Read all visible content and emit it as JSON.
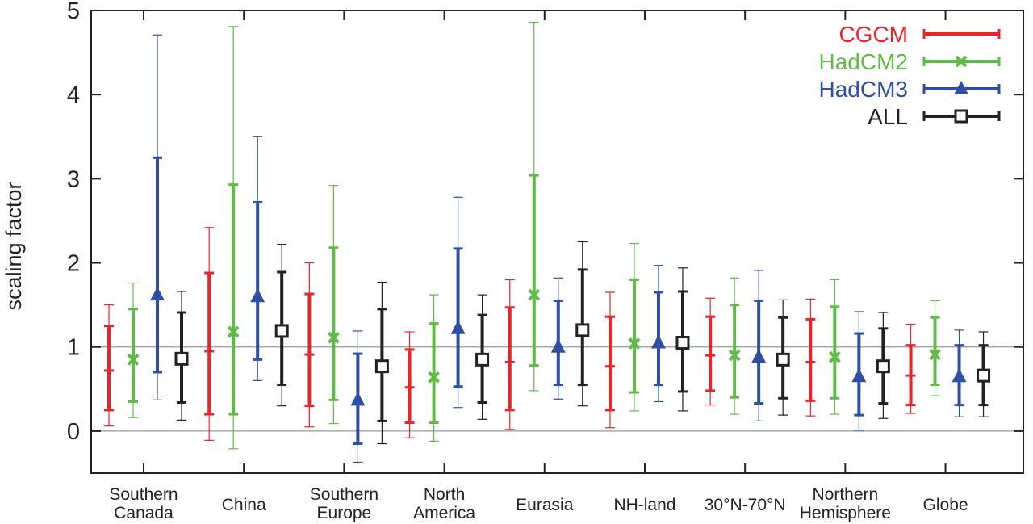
{
  "chart_data": {
    "type": "errorbar",
    "ylabel": "scaling factor",
    "ylim": [
      -0.5,
      5
    ],
    "yticks": [
      "0",
      "1",
      "2",
      "3",
      "4",
      "5"
    ],
    "reference_lines": [
      0,
      1
    ],
    "legend_position": "top-right",
    "categories": [
      [
        "Southern",
        "Canada"
      ],
      [
        "China"
      ],
      [
        "Southern",
        "Europe"
      ],
      [
        "North",
        "America"
      ],
      [
        "Eurasia"
      ],
      [
        "NH-land"
      ],
      [
        "30°N-70°N"
      ],
      [
        "Northern",
        "Hemisphere"
      ],
      [
        "Globe"
      ]
    ],
    "series": [
      {
        "name": "CGCM",
        "color": "#e8262a",
        "marker": "dash",
        "best": [
          0.72,
          0.95,
          0.91,
          0.52,
          0.82,
          0.77,
          0.9,
          0.82,
          0.66
        ],
        "inner": [
          [
            0.25,
            1.25
          ],
          [
            0.2,
            1.88
          ],
          [
            0.3,
            1.63
          ],
          [
            0.1,
            0.97
          ],
          [
            0.25,
            1.47
          ],
          [
            0.25,
            1.36
          ],
          [
            0.48,
            1.36
          ],
          [
            0.36,
            1.33
          ],
          [
            0.31,
            1.02
          ]
        ],
        "outer": [
          [
            0.06,
            1.5
          ],
          [
            -0.11,
            2.42
          ],
          [
            0.05,
            2.0
          ],
          [
            -0.08,
            1.18
          ],
          [
            0.02,
            1.8
          ],
          [
            0.04,
            1.65
          ],
          [
            0.31,
            1.58
          ],
          [
            0.18,
            1.57
          ],
          [
            0.21,
            1.27
          ]
        ]
      },
      {
        "name": "HadCM2",
        "color": "#5fba46",
        "marker": "x",
        "best": [
          0.85,
          1.18,
          1.11,
          0.64,
          1.62,
          1.04,
          0.9,
          0.88,
          0.91
        ],
        "inner": [
          [
            0.35,
            1.45
          ],
          [
            0.2,
            2.93
          ],
          [
            0.37,
            2.18
          ],
          [
            0.1,
            1.28
          ],
          [
            0.78,
            3.04
          ],
          [
            0.46,
            1.8
          ],
          [
            0.4,
            1.5
          ],
          [
            0.39,
            1.48
          ],
          [
            0.55,
            1.35
          ]
        ],
        "outer": [
          [
            0.16,
            1.76
          ],
          [
            -0.21,
            4.81
          ],
          [
            0.09,
            2.92
          ],
          [
            -0.12,
            1.62
          ],
          [
            0.48,
            4.86
          ],
          [
            0.24,
            2.23
          ],
          [
            0.2,
            1.82
          ],
          [
            0.2,
            1.8
          ],
          [
            0.42,
            1.55
          ]
        ]
      },
      {
        "name": "HadCM3",
        "color": "#2e4fa3",
        "marker": "triangle",
        "best": [
          1.62,
          1.6,
          0.37,
          1.22,
          1.0,
          1.05,
          0.88,
          0.65,
          0.65
        ],
        "inner": [
          [
            0.7,
            3.25
          ],
          [
            0.85,
            2.72
          ],
          [
            -0.15,
            0.92
          ],
          [
            0.53,
            2.17
          ],
          [
            0.55,
            1.55
          ],
          [
            0.55,
            1.65
          ],
          [
            0.33,
            1.55
          ],
          [
            0.19,
            1.16
          ],
          [
            0.31,
            1.02
          ]
        ],
        "outer": [
          [
            0.37,
            4.71
          ],
          [
            0.6,
            3.5
          ],
          [
            -0.37,
            1.19
          ],
          [
            0.28,
            2.78
          ],
          [
            0.38,
            1.82
          ],
          [
            0.35,
            1.97
          ],
          [
            0.12,
            1.91
          ],
          [
            0.01,
            1.42
          ],
          [
            0.17,
            1.2
          ]
        ]
      },
      {
        "name": "ALL",
        "color": "#222222",
        "marker": "square",
        "best": [
          0.86,
          1.19,
          0.77,
          0.85,
          1.2,
          1.05,
          0.85,
          0.77,
          0.66
        ],
        "inner": [
          [
            0.34,
            1.41
          ],
          [
            0.55,
            1.89
          ],
          [
            0.12,
            1.45
          ],
          [
            0.34,
            1.38
          ],
          [
            0.55,
            1.92
          ],
          [
            0.47,
            1.66
          ],
          [
            0.39,
            1.35
          ],
          [
            0.33,
            1.22
          ],
          [
            0.31,
            1.02
          ]
        ],
        "outer": [
          [
            0.13,
            1.66
          ],
          [
            0.3,
            2.22
          ],
          [
            -0.15,
            1.77
          ],
          [
            0.14,
            1.62
          ],
          [
            0.3,
            2.25
          ],
          [
            0.24,
            1.94
          ],
          [
            0.19,
            1.56
          ],
          [
            0.15,
            1.41
          ],
          [
            0.17,
            1.18
          ]
        ]
      }
    ]
  }
}
